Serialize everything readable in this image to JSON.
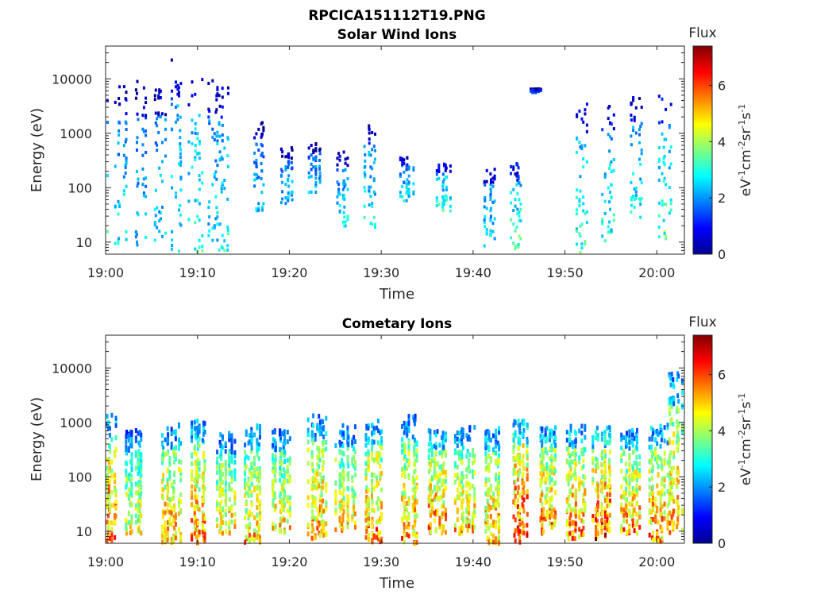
{
  "figure": {
    "title": "RPCICA151112T19.PNG"
  },
  "chart_data": [
    {
      "type": "heatmap",
      "title": "Solar Wind Ions",
      "xlabel": "Time",
      "ylabel": "Energy (eV)",
      "x_range": [
        "19:00",
        "20:03"
      ],
      "x_ticks": [
        "19:00",
        "19:10",
        "19:20",
        "19:30",
        "19:40",
        "19:50",
        "20:00"
      ],
      "y_scale": "log",
      "ylim": [
        6,
        40000
      ],
      "y_ticks": [
        "10",
        "100",
        "1000",
        "10000"
      ],
      "colorbar": {
        "title": "Flux",
        "label": "eV-1cm-2sr-1s-1",
        "range": [
          0,
          7.4
        ],
        "ticks": [
          "0",
          "2",
          "4",
          "6"
        ]
      },
      "bursts": [
        {
          "t": "19:00",
          "e_max": 10000,
          "e_min": 6,
          "flux": 2.5
        },
        {
          "t": "19:02",
          "e_max": 8000,
          "e_min": 10,
          "flux": 2.2
        },
        {
          "t": "19:04",
          "e_max": 10000,
          "e_min": 6,
          "flux": 2.0
        },
        {
          "t": "19:06",
          "e_max": 9000,
          "e_min": 10,
          "flux": 2.2
        },
        {
          "t": "19:08",
          "e_max": 25000,
          "e_min": 6,
          "flux": 2.4
        },
        {
          "t": "19:10",
          "e_max": 12000,
          "e_min": 6,
          "flux": 2.6
        },
        {
          "t": "19:12",
          "e_max": 10000,
          "e_min": 6,
          "flux": 2.2
        },
        {
          "t": "19:13",
          "e_max": 9000,
          "e_min": 6,
          "flux": 2.5
        },
        {
          "t": "19:17",
          "e_max": 1800,
          "e_min": 40,
          "flux": 2.0
        },
        {
          "t": "19:20",
          "e_max": 600,
          "e_min": 50,
          "flux": 2.0
        },
        {
          "t": "19:23",
          "e_max": 700,
          "e_min": 80,
          "flux": 2.0
        },
        {
          "t": "19:26",
          "e_max": 500,
          "e_min": 20,
          "flux": 2.2
        },
        {
          "t": "19:29",
          "e_max": 1500,
          "e_min": 20,
          "flux": 2.4
        },
        {
          "t": "19:33",
          "e_max": 400,
          "e_min": 60,
          "flux": 2.2
        },
        {
          "t": "19:37",
          "e_max": 300,
          "e_min": 40,
          "flux": 2.6
        },
        {
          "t": "19:42",
          "e_max": 250,
          "e_min": 8,
          "flux": 2.2
        },
        {
          "t": "19:45",
          "e_max": 300,
          "e_min": 8,
          "flux": 2.8
        },
        {
          "t": "19:47",
          "e_max": 7000,
          "e_min": 6000,
          "flux": 1.2
        },
        {
          "t": "19:52",
          "e_max": 4000,
          "e_min": 6,
          "flux": 2.6
        },
        {
          "t": "19:55",
          "e_max": 4000,
          "e_min": 10,
          "flux": 2.6
        },
        {
          "t": "19:58",
          "e_max": 5000,
          "e_min": 30,
          "flux": 2.4
        },
        {
          "t": "20:01",
          "e_max": 6000,
          "e_min": 10,
          "flux": 2.8
        }
      ]
    },
    {
      "type": "heatmap",
      "title": "Cometary Ions",
      "xlabel": "Time",
      "ylabel": "Energy (eV)",
      "x_range": [
        "19:00",
        "20:03"
      ],
      "x_ticks": [
        "19:00",
        "19:10",
        "19:20",
        "19:30",
        "19:40",
        "19:50",
        "20:00"
      ],
      "y_scale": "log",
      "ylim": [
        6,
        40000
      ],
      "y_ticks": [
        "10",
        "100",
        "1000",
        "10000"
      ],
      "colorbar": {
        "title": "Flux",
        "label": "eV-1cm-2sr-1s-1",
        "range": [
          0,
          7.4
        ],
        "ticks": [
          "0",
          "2",
          "4",
          "6"
        ]
      },
      "bursts": [
        {
          "t": "19:00",
          "e_max": 1500,
          "e_min": 6,
          "flux": 4.8
        },
        {
          "t": "19:03",
          "e_max": 800,
          "e_min": 10,
          "flux": 3.8
        },
        {
          "t": "19:07",
          "e_max": 1000,
          "e_min": 6,
          "flux": 4.4
        },
        {
          "t": "19:10",
          "e_max": 1200,
          "e_min": 6,
          "flux": 4.6
        },
        {
          "t": "19:13",
          "e_max": 700,
          "e_min": 10,
          "flux": 4.0
        },
        {
          "t": "19:16",
          "e_max": 1000,
          "e_min": 6,
          "flux": 4.2
        },
        {
          "t": "19:19",
          "e_max": 800,
          "e_min": 10,
          "flux": 4.0
        },
        {
          "t": "19:23",
          "e_max": 1500,
          "e_min": 8,
          "flux": 4.4
        },
        {
          "t": "19:26",
          "e_max": 1000,
          "e_min": 10,
          "flux": 4.0
        },
        {
          "t": "19:29",
          "e_max": 1200,
          "e_min": 6,
          "flux": 4.6
        },
        {
          "t": "19:33",
          "e_max": 1500,
          "e_min": 6,
          "flux": 4.4
        },
        {
          "t": "19:36",
          "e_max": 800,
          "e_min": 10,
          "flux": 4.6
        },
        {
          "t": "19:39",
          "e_max": 900,
          "e_min": 10,
          "flux": 4.2
        },
        {
          "t": "19:42",
          "e_max": 900,
          "e_min": 6,
          "flux": 4.4
        },
        {
          "t": "19:45",
          "e_max": 1200,
          "e_min": 6,
          "flux": 5.2
        },
        {
          "t": "19:48",
          "e_max": 900,
          "e_min": 10,
          "flux": 4.6
        },
        {
          "t": "19:51",
          "e_max": 1000,
          "e_min": 8,
          "flux": 4.6
        },
        {
          "t": "19:54",
          "e_max": 900,
          "e_min": 8,
          "flux": 5.0
        },
        {
          "t": "19:57",
          "e_max": 800,
          "e_min": 10,
          "flux": 4.4
        },
        {
          "t": "20:00",
          "e_max": 1000,
          "e_min": 6,
          "flux": 4.6
        },
        {
          "t": "20:02",
          "e_max": 9000,
          "e_min": 10,
          "flux": 4.4
        }
      ]
    }
  ]
}
